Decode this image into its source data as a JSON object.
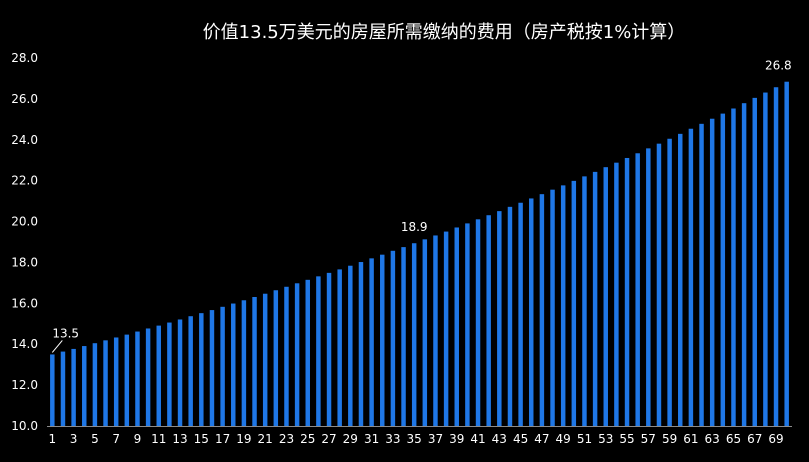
{
  "chart_data": {
    "type": "bar",
    "title": "价值13.5万美元的房屋所需缴纳的费用（房产税按1%计算）",
    "xlabel": "",
    "ylabel": "",
    "ylim": [
      10.0,
      28.0
    ],
    "y_ticks": [
      "10.0",
      "12.0",
      "14.0",
      "16.0",
      "18.0",
      "20.0",
      "22.0",
      "24.0",
      "26.0",
      "28.0"
    ],
    "categories": [
      1,
      2,
      3,
      4,
      5,
      6,
      7,
      8,
      9,
      10,
      11,
      12,
      13,
      14,
      15,
      16,
      17,
      18,
      19,
      20,
      21,
      22,
      23,
      24,
      25,
      26,
      27,
      28,
      29,
      30,
      31,
      32,
      33,
      34,
      35,
      36,
      37,
      38,
      39,
      40,
      41,
      42,
      43,
      44,
      45,
      46,
      47,
      48,
      49,
      50,
      51,
      52,
      53,
      54,
      55,
      56,
      57,
      58,
      59,
      60,
      61,
      62,
      63,
      64,
      65,
      66,
      67,
      68,
      69,
      70
    ],
    "x_tick_labels": [
      "1",
      "3",
      "5",
      "7",
      "9",
      "11",
      "13",
      "15",
      "17",
      "19",
      "21",
      "23",
      "25",
      "27",
      "29",
      "31",
      "33",
      "35",
      "37",
      "39",
      "41",
      "43",
      "45",
      "47",
      "49",
      "51",
      "53",
      "55",
      "57",
      "59",
      "61",
      "63",
      "65",
      "67",
      "69"
    ],
    "values": [
      13.5,
      13.64,
      13.77,
      13.91,
      14.05,
      14.19,
      14.33,
      14.47,
      14.62,
      14.77,
      14.91,
      15.06,
      15.21,
      15.37,
      15.52,
      15.67,
      15.83,
      15.99,
      16.15,
      16.31,
      16.47,
      16.64,
      16.81,
      16.98,
      17.15,
      17.32,
      17.49,
      17.66,
      17.84,
      18.02,
      18.2,
      18.38,
      18.57,
      18.75,
      18.94,
      19.13,
      19.32,
      19.51,
      19.71,
      19.91,
      20.11,
      20.31,
      20.51,
      20.72,
      20.92,
      21.13,
      21.34,
      21.56,
      21.77,
      21.99,
      22.21,
      22.43,
      22.66,
      22.88,
      23.11,
      23.34,
      23.58,
      23.81,
      24.05,
      24.29,
      24.54,
      24.78,
      25.03,
      25.28,
      25.53,
      25.79,
      26.05,
      26.31,
      26.57,
      26.84
    ],
    "data_labels": [
      {
        "index": 0,
        "text": "13.5"
      },
      {
        "index": 34,
        "text": "18.9"
      },
      {
        "index": 69,
        "text": "26.8"
      }
    ],
    "bar_color": "#1f77e6",
    "background": "#000000",
    "grid": false,
    "legend": "none"
  }
}
